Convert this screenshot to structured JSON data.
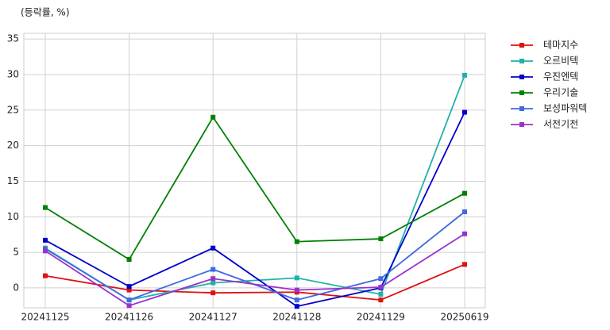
{
  "chart_data": {
    "type": "line",
    "y_label": "(등락률, %)",
    "categories": [
      "20241125",
      "20241126",
      "20241127",
      "20241128",
      "20241129",
      "20250619"
    ],
    "series": [
      {
        "name": "테마지수",
        "color": "#e01010",
        "values": [
          1.7,
          -0.3,
          -0.7,
          -0.6,
          -1.7,
          3.3
        ]
      },
      {
        "name": "오르비텍",
        "color": "#20b2aa",
        "values": [
          5.6,
          -1.7,
          0.7,
          1.4,
          -0.9,
          29.9
        ]
      },
      {
        "name": "우진엔텍",
        "color": "#0000cc",
        "values": [
          6.7,
          0.2,
          5.6,
          -2.6,
          0.0,
          24.7
        ]
      },
      {
        "name": "우리기술",
        "color": "#008000",
        "values": [
          11.3,
          4.0,
          24.0,
          6.5,
          6.9,
          13.3
        ]
      },
      {
        "name": "보성파워텍",
        "color": "#4169e1",
        "values": [
          5.5,
          -1.7,
          2.6,
          -1.7,
          1.3,
          10.7
        ]
      },
      {
        "name": "서전기전",
        "color": "#9932cc",
        "values": [
          5.2,
          -2.5,
          1.3,
          -0.3,
          0.1,
          7.6
        ]
      }
    ],
    "ylim": [
      -2.8,
      35.8
    ],
    "yticks": [
      0,
      5,
      10,
      15,
      20,
      25,
      30,
      35
    ],
    "grid": true,
    "legend": "outside-right"
  }
}
